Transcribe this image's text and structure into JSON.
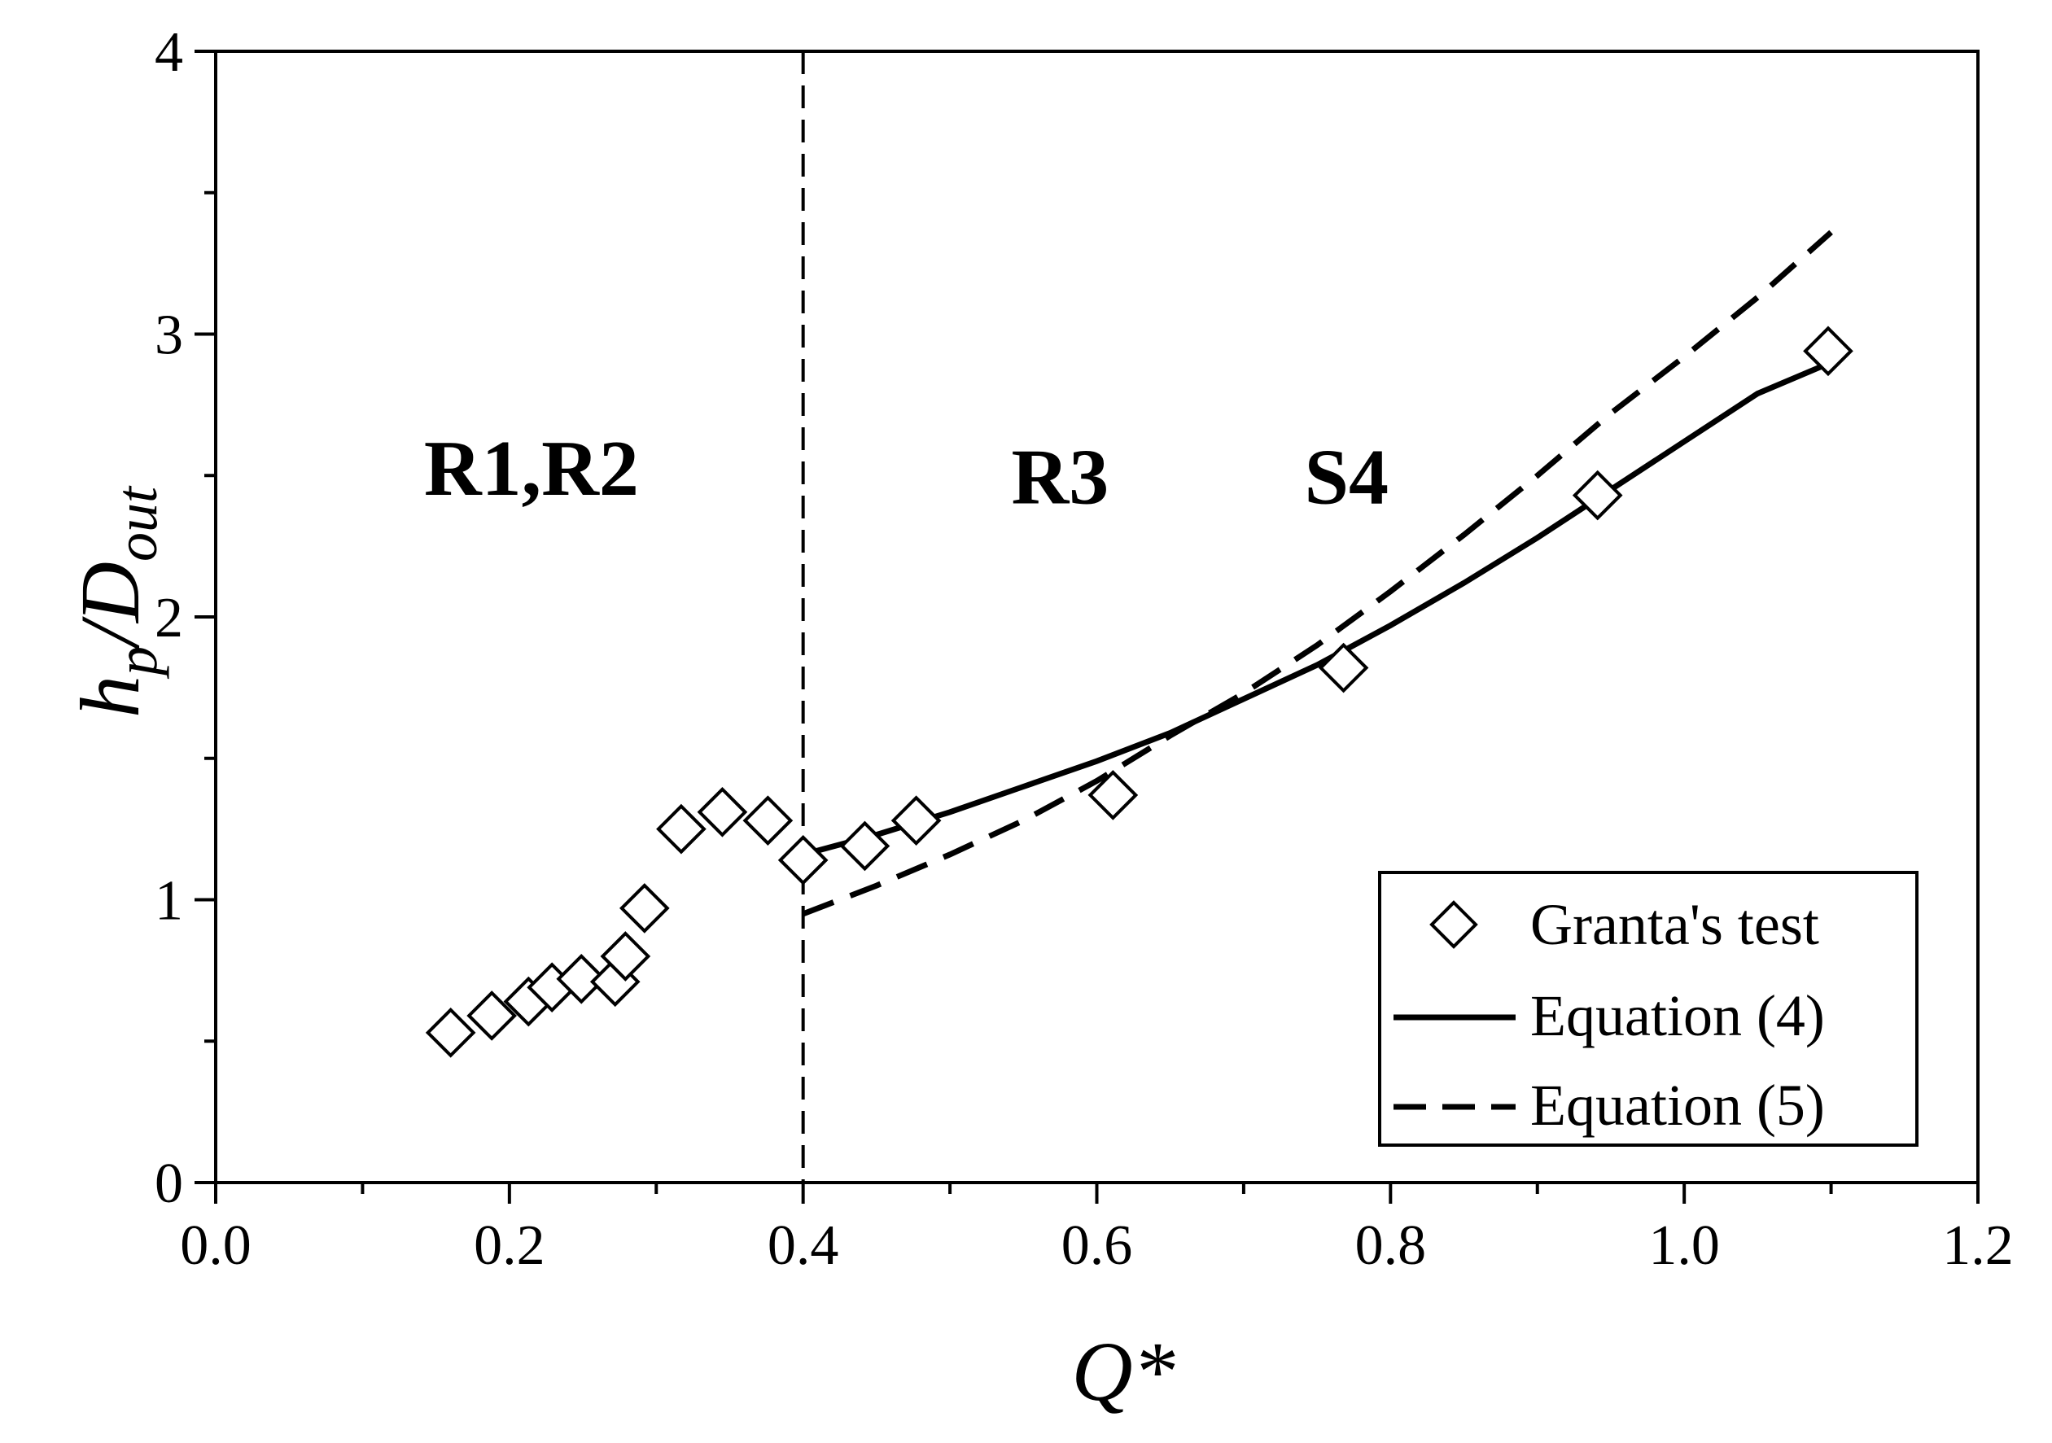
{
  "chart_data": {
    "type": "scatter",
    "title": "",
    "xlabel": "Q*",
    "ylabel": {
      "h": "h",
      "p": "p",
      "slash": "/D",
      "out": "out"
    },
    "xlim": [
      0.0,
      1.2
    ],
    "ylim": [
      0,
      4
    ],
    "x_ticks": [
      {
        "value": 0.0,
        "label": "0.0"
      },
      {
        "value": 0.2,
        "label": "0.2"
      },
      {
        "value": 0.4,
        "label": "0.4"
      },
      {
        "value": 0.6,
        "label": "0.6"
      },
      {
        "value": 0.8,
        "label": "0.8"
      },
      {
        "value": 1.0,
        "label": "1.0"
      },
      {
        "value": 1.2,
        "label": "1.2"
      }
    ],
    "x_minor_ticks": [
      0.1,
      0.3,
      0.5,
      0.7,
      0.9,
      1.1
    ],
    "y_ticks": [
      {
        "value": 0,
        "label": "0"
      },
      {
        "value": 1,
        "label": "1"
      },
      {
        "value": 2,
        "label": "2"
      },
      {
        "value": 3,
        "label": "3"
      },
      {
        "value": 4,
        "label": "4"
      }
    ],
    "y_minor_ticks": [
      0.5,
      1.5,
      2.5,
      3.5
    ],
    "grid": false,
    "legend_position": "bottom-right",
    "divider_x": 0.4,
    "region_labels": [
      {
        "text": "R1,R2",
        "x": 0.215,
        "y": 2.53
      },
      {
        "text": "R3",
        "x": 0.575,
        "y": 2.5
      },
      {
        "text": "S4",
        "x": 0.77,
        "y": 2.5
      }
    ],
    "series": [
      {
        "name": "Granta's test",
        "kind": "scatter",
        "marker": "diamond",
        "points": [
          [
            0.16,
            0.53
          ],
          [
            0.188,
            0.59
          ],
          [
            0.213,
            0.64
          ],
          [
            0.229,
            0.69
          ],
          [
            0.249,
            0.72
          ],
          [
            0.272,
            0.71
          ],
          [
            0.279,
            0.8
          ],
          [
            0.292,
            0.97
          ],
          [
            0.317,
            1.25
          ],
          [
            0.345,
            1.31
          ],
          [
            0.376,
            1.28
          ],
          [
            0.4,
            1.14
          ],
          [
            0.442,
            1.19
          ],
          [
            0.477,
            1.28
          ],
          [
            0.611,
            1.37
          ],
          [
            0.768,
            1.82
          ],
          [
            0.941,
            2.43
          ],
          [
            1.098,
            2.94
          ]
        ]
      },
      {
        "name": "Equation (4)",
        "kind": "line",
        "style": "solid",
        "points": [
          [
            0.4,
            1.16
          ],
          [
            0.45,
            1.23
          ],
          [
            0.5,
            1.31
          ],
          [
            0.55,
            1.4
          ],
          [
            0.6,
            1.49
          ],
          [
            0.65,
            1.59
          ],
          [
            0.7,
            1.71
          ],
          [
            0.75,
            1.83
          ],
          [
            0.8,
            1.97
          ],
          [
            0.85,
            2.12
          ],
          [
            0.9,
            2.28
          ],
          [
            0.95,
            2.45
          ],
          [
            1.0,
            2.62
          ],
          [
            1.05,
            2.79
          ],
          [
            1.1,
            2.9
          ]
        ]
      },
      {
        "name": "Equation (5)",
        "kind": "line",
        "style": "dashed",
        "points": [
          [
            0.4,
            0.95
          ],
          [
            0.45,
            1.05
          ],
          [
            0.5,
            1.16
          ],
          [
            0.55,
            1.28
          ],
          [
            0.6,
            1.42
          ],
          [
            0.65,
            1.58
          ],
          [
            0.7,
            1.73
          ],
          [
            0.75,
            1.9
          ],
          [
            0.8,
            2.09
          ],
          [
            0.85,
            2.29
          ],
          [
            0.9,
            2.5
          ],
          [
            0.95,
            2.72
          ],
          [
            1.0,
            2.92
          ],
          [
            1.05,
            3.13
          ],
          [
            1.1,
            3.36
          ]
        ]
      }
    ]
  }
}
